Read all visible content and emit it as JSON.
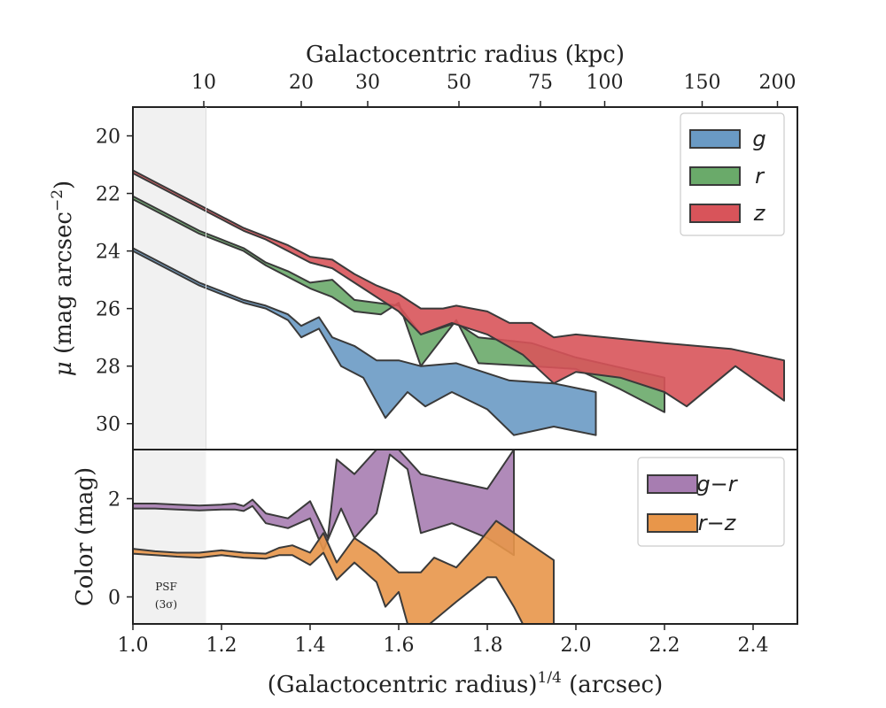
{
  "chart_data": [
    {
      "type": "area",
      "panel": "surface-brightness",
      "xlabel": "(Galactocentric radius)^1/4 (arcsec)",
      "ylabel": "μ (mag arcsec^−2)",
      "top_xlabel": "Galactocentric radius (kpc)",
      "xlim": [
        1.0,
        2.5
      ],
      "ylim": [
        30.9,
        19.0
      ],
      "y_inverted": true,
      "yticks": [
        20,
        22,
        24,
        26,
        28,
        30
      ],
      "top_ticks": [
        {
          "label": "10",
          "x": 1.16
        },
        {
          "label": "20",
          "x": 1.38
        },
        {
          "label": "30",
          "x": 1.53
        },
        {
          "label": "50",
          "x": 1.736
        },
        {
          "label": "75",
          "x": 1.92
        },
        {
          "label": "100",
          "x": 2.065
        },
        {
          "label": "150",
          "x": 2.285
        },
        {
          "label": "200",
          "x": 2.455
        }
      ],
      "legend_position": "top-right",
      "shaded_region": {
        "x": [
          1.0,
          1.165
        ],
        "color": "#f1f1f1"
      },
      "series": [
        {
          "name": "g",
          "color": "#6a9ac4",
          "upper": [
            [
              1.0,
              23.9
            ],
            [
              1.05,
              24.3
            ],
            [
              1.1,
              24.7
            ],
            [
              1.15,
              25.1
            ],
            [
              1.2,
              25.4
            ],
            [
              1.25,
              25.7
            ],
            [
              1.3,
              25.9
            ],
            [
              1.35,
              26.2
            ],
            [
              1.38,
              26.6
            ],
            [
              1.42,
              26.3
            ],
            [
              1.45,
              27.0
            ],
            [
              1.5,
              27.3
            ],
            [
              1.55,
              27.8
            ],
            [
              1.6,
              27.8
            ],
            [
              1.65,
              28.0
            ],
            [
              1.73,
              27.9
            ],
            [
              1.85,
              28.5
            ],
            [
              1.95,
              28.6
            ],
            [
              2.045,
              28.9
            ]
          ],
          "lower": [
            [
              1.0,
              24.0
            ],
            [
              1.05,
              24.4
            ],
            [
              1.1,
              24.8
            ],
            [
              1.15,
              25.2
            ],
            [
              1.2,
              25.5
            ],
            [
              1.25,
              25.8
            ],
            [
              1.3,
              26.0
            ],
            [
              1.35,
              26.4
            ],
            [
              1.38,
              27.0
            ],
            [
              1.42,
              26.7
            ],
            [
              1.47,
              28.0
            ],
            [
              1.52,
              28.4
            ],
            [
              1.57,
              29.8
            ],
            [
              1.62,
              28.9
            ],
            [
              1.66,
              29.4
            ],
            [
              1.72,
              28.9
            ],
            [
              1.8,
              29.5
            ],
            [
              1.86,
              30.4
            ],
            [
              1.95,
              30.1
            ],
            [
              2.045,
              30.4
            ]
          ]
        },
        {
          "name": "r",
          "color": "#6aaa6a",
          "upper": [
            [
              1.0,
              22.1
            ],
            [
              1.05,
              22.5
            ],
            [
              1.1,
              22.9
            ],
            [
              1.15,
              23.3
            ],
            [
              1.2,
              23.6
            ],
            [
              1.25,
              23.9
            ],
            [
              1.3,
              24.4
            ],
            [
              1.35,
              24.7
            ],
            [
              1.4,
              25.1
            ],
            [
              1.45,
              25.0
            ],
            [
              1.5,
              25.7
            ],
            [
              1.55,
              25.8
            ],
            [
              1.6,
              25.9
            ],
            [
              1.65,
              26.9
            ],
            [
              1.73,
              26.5
            ],
            [
              1.78,
              27.0
            ],
            [
              1.9,
              27.2
            ],
            [
              2.0,
              27.7
            ],
            [
              2.2,
              28.4
            ]
          ],
          "lower": [
            [
              1.0,
              22.2
            ],
            [
              1.05,
              22.6
            ],
            [
              1.1,
              23.0
            ],
            [
              1.15,
              23.4
            ],
            [
              1.2,
              23.7
            ],
            [
              1.25,
              24.0
            ],
            [
              1.3,
              24.5
            ],
            [
              1.35,
              24.9
            ],
            [
              1.4,
              25.3
            ],
            [
              1.45,
              25.6
            ],
            [
              1.5,
              26.1
            ],
            [
              1.56,
              26.2
            ],
            [
              1.6,
              25.8
            ],
            [
              1.65,
              28.0
            ],
            [
              1.73,
              26.4
            ],
            [
              1.78,
              27.9
            ],
            [
              1.9,
              28.0
            ],
            [
              2.0,
              28.1
            ],
            [
              2.1,
              28.8
            ],
            [
              2.2,
              29.6
            ]
          ]
        },
        {
          "name": "z",
          "color": "#d8545a",
          "upper": [
            [
              1.0,
              21.2
            ],
            [
              1.05,
              21.6
            ],
            [
              1.1,
              22.0
            ],
            [
              1.15,
              22.4
            ],
            [
              1.2,
              22.8
            ],
            [
              1.25,
              23.2
            ],
            [
              1.3,
              23.5
            ],
            [
              1.35,
              23.8
            ],
            [
              1.4,
              24.2
            ],
            [
              1.45,
              24.3
            ],
            [
              1.5,
              24.8
            ],
            [
              1.55,
              25.2
            ],
            [
              1.6,
              25.5
            ],
            [
              1.65,
              26.0
            ],
            [
              1.7,
              26.0
            ],
            [
              1.73,
              25.9
            ],
            [
              1.8,
              26.1
            ],
            [
              1.85,
              26.5
            ],
            [
              1.9,
              26.5
            ],
            [
              1.95,
              27.0
            ],
            [
              2.0,
              26.9
            ],
            [
              2.2,
              27.2
            ],
            [
              2.35,
              27.4
            ],
            [
              2.47,
              27.8
            ]
          ],
          "lower": [
            [
              1.0,
              21.3
            ],
            [
              1.05,
              21.7
            ],
            [
              1.1,
              22.1
            ],
            [
              1.15,
              22.5
            ],
            [
              1.2,
              22.9
            ],
            [
              1.25,
              23.3
            ],
            [
              1.3,
              23.6
            ],
            [
              1.35,
              24.0
            ],
            [
              1.4,
              24.4
            ],
            [
              1.45,
              24.6
            ],
            [
              1.5,
              25.1
            ],
            [
              1.55,
              25.6
            ],
            [
              1.6,
              26.1
            ],
            [
              1.65,
              26.9
            ],
            [
              1.72,
              26.5
            ],
            [
              1.8,
              26.9
            ],
            [
              1.88,
              27.6
            ],
            [
              1.95,
              28.6
            ],
            [
              2.0,
              28.2
            ],
            [
              2.1,
              28.4
            ],
            [
              2.2,
              28.9
            ],
            [
              2.25,
              29.4
            ],
            [
              2.36,
              28.0
            ],
            [
              2.47,
              29.2
            ]
          ]
        }
      ]
    },
    {
      "type": "area",
      "panel": "color",
      "xlabel": "(Galactocentric radius)^1/4 (arcsec)",
      "ylabel": "Color (mag)",
      "xlim": [
        1.0,
        2.5
      ],
      "ylim": [
        -0.55,
        3.0
      ],
      "xticks": [
        1.0,
        1.2,
        1.4,
        1.6,
        1.8,
        2.0,
        2.2,
        2.4
      ],
      "xtick_labels": [
        "1.0",
        "1.2",
        "1.4",
        "1.6",
        "1.8",
        "2.0",
        "2.2",
        "2.4"
      ],
      "yticks": [
        0,
        2
      ],
      "legend_position": "top-right",
      "shaded_region": {
        "x": [
          1.0,
          1.165
        ],
        "color": "#f1f1f1"
      },
      "annotation": {
        "line1": "PSF",
        "line2": "(3σ)"
      },
      "series": [
        {
          "name": "g−r",
          "color": "#a77db1",
          "upper": [
            [
              1.0,
              1.9
            ],
            [
              1.05,
              1.9
            ],
            [
              1.1,
              1.88
            ],
            [
              1.15,
              1.86
            ],
            [
              1.2,
              1.88
            ],
            [
              1.23,
              1.9
            ],
            [
              1.25,
              1.85
            ],
            [
              1.27,
              1.98
            ],
            [
              1.3,
              1.7
            ],
            [
              1.35,
              1.6
            ],
            [
              1.4,
              1.95
            ],
            [
              1.44,
              1.2
            ],
            [
              1.46,
              2.8
            ],
            [
              1.5,
              2.5
            ],
            [
              1.55,
              3.0
            ],
            [
              1.6,
              3.0
            ],
            [
              1.65,
              2.5
            ],
            [
              1.7,
              2.4
            ],
            [
              1.8,
              2.2
            ],
            [
              1.86,
              3.0
            ]
          ],
          "lower": [
            [
              1.0,
              1.8
            ],
            [
              1.05,
              1.8
            ],
            [
              1.1,
              1.78
            ],
            [
              1.15,
              1.76
            ],
            [
              1.2,
              1.78
            ],
            [
              1.23,
              1.78
            ],
            [
              1.25,
              1.75
            ],
            [
              1.27,
              1.85
            ],
            [
              1.3,
              1.5
            ],
            [
              1.35,
              1.4
            ],
            [
              1.4,
              1.6
            ],
            [
              1.43,
              0.95
            ],
            [
              1.47,
              1.8
            ],
            [
              1.5,
              1.2
            ],
            [
              1.55,
              1.7
            ],
            [
              1.58,
              2.9
            ],
            [
              1.62,
              2.6
            ],
            [
              1.65,
              1.3
            ],
            [
              1.72,
              1.5
            ],
            [
              1.8,
              1.2
            ],
            [
              1.86,
              0.85
            ]
          ]
        },
        {
          "name": "r−z",
          "color": "#e8964a",
          "upper": [
            [
              1.0,
              0.98
            ],
            [
              1.05,
              0.93
            ],
            [
              1.1,
              0.9
            ],
            [
              1.15,
              0.9
            ],
            [
              1.2,
              0.95
            ],
            [
              1.25,
              0.9
            ],
            [
              1.3,
              0.88
            ],
            [
              1.33,
              1.0
            ],
            [
              1.36,
              1.05
            ],
            [
              1.4,
              0.9
            ],
            [
              1.43,
              1.3
            ],
            [
              1.46,
              0.7
            ],
            [
              1.5,
              1.2
            ],
            [
              1.55,
              0.9
            ],
            [
              1.6,
              0.5
            ],
            [
              1.65,
              0.5
            ],
            [
              1.68,
              0.8
            ],
            [
              1.73,
              0.6
            ],
            [
              1.78,
              1.1
            ],
            [
              1.82,
              1.55
            ],
            [
              1.95,
              0.75
            ]
          ],
          "lower": [
            [
              1.0,
              0.88
            ],
            [
              1.05,
              0.85
            ],
            [
              1.1,
              0.82
            ],
            [
              1.15,
              0.8
            ],
            [
              1.2,
              0.85
            ],
            [
              1.25,
              0.8
            ],
            [
              1.3,
              0.78
            ],
            [
              1.33,
              0.85
            ],
            [
              1.36,
              0.85
            ],
            [
              1.4,
              0.65
            ],
            [
              1.43,
              0.9
            ],
            [
              1.46,
              0.35
            ],
            [
              1.5,
              0.7
            ],
            [
              1.55,
              0.3
            ],
            [
              1.57,
              -0.2
            ],
            [
              1.6,
              0.1
            ],
            [
              1.62,
              -0.55
            ],
            [
              1.67,
              -0.55
            ],
            [
              1.73,
              -0.1
            ],
            [
              1.8,
              0.4
            ],
            [
              1.82,
              0.4
            ],
            [
              1.86,
              -0.2
            ],
            [
              1.88,
              -0.55
            ],
            [
              1.95,
              -0.55
            ]
          ]
        }
      ]
    }
  ]
}
